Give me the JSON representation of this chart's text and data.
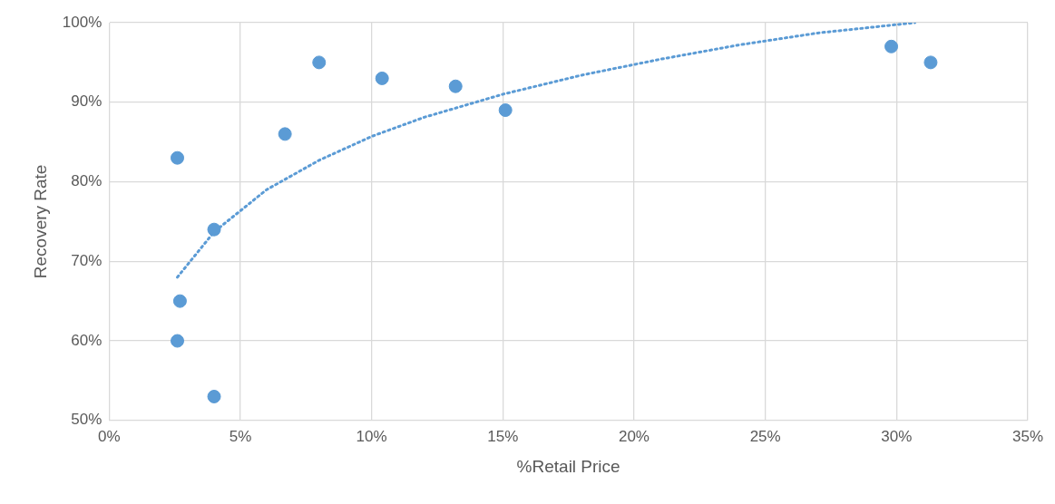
{
  "chart_data": {
    "type": "scatter",
    "xlabel": "%Retail Price",
    "ylabel": "Recovery Rate",
    "xlim": [
      0,
      35
    ],
    "ylim": [
      50,
      100
    ],
    "xticks": [
      {
        "value": 0,
        "label": "0%"
      },
      {
        "value": 5,
        "label": "5%"
      },
      {
        "value": 10,
        "label": "10%"
      },
      {
        "value": 15,
        "label": "15%"
      },
      {
        "value": 20,
        "label": "20%"
      },
      {
        "value": 25,
        "label": "25%"
      },
      {
        "value": 30,
        "label": "30%"
      },
      {
        "value": 35,
        "label": "35%"
      }
    ],
    "yticks": [
      {
        "value": 50,
        "label": "50%"
      },
      {
        "value": 60,
        "label": "60%"
      },
      {
        "value": 70,
        "label": "70%"
      },
      {
        "value": 80,
        "label": "80%"
      },
      {
        "value": 90,
        "label": "90%"
      },
      {
        "value": 100,
        "label": "100%"
      }
    ],
    "grid": true,
    "legend": false,
    "marker": "circle",
    "series": [
      {
        "type": "scatter",
        "color": "#5b9bd5",
        "x": [
          2.6,
          2.7,
          2.6,
          4.0,
          4.0,
          6.7,
          8.0,
          10.4,
          13.2,
          15.1,
          29.8,
          31.3
        ],
        "values": [
          83,
          65,
          60,
          74,
          53,
          86,
          95,
          93,
          92,
          89,
          97,
          95
        ]
      },
      {
        "type": "line",
        "color": "#5b9bd5",
        "line_style": "dotted",
        "marker": "none",
        "x": [
          2.6,
          4,
          6,
          8,
          10,
          12,
          15,
          18,
          21,
          24,
          27,
          30.7
        ],
        "values": [
          68,
          73.7,
          79.0,
          82.7,
          85.7,
          88.1,
          91.0,
          93.4,
          95.4,
          97.2,
          98.7,
          100
        ]
      }
    ]
  }
}
